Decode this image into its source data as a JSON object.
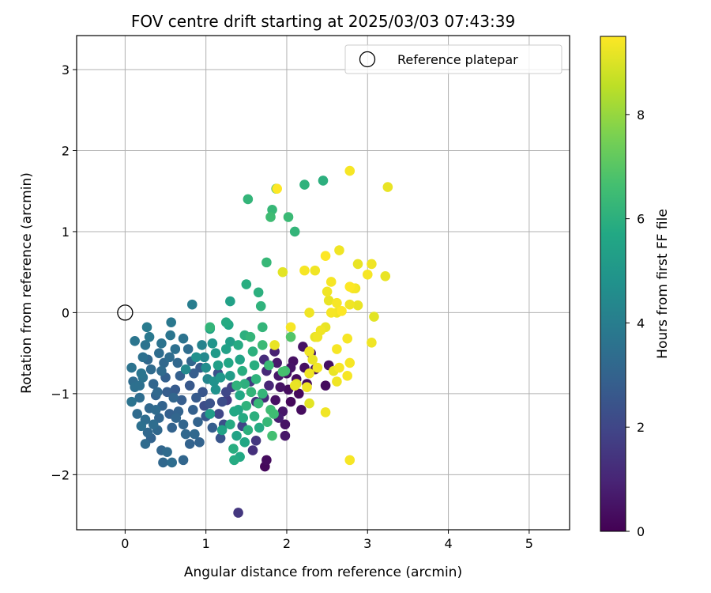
{
  "chart_data": {
    "type": "scatter",
    "title": "FOV centre drift starting at 2025/03/03 07:43:39",
    "xlabel": "Angular distance from reference (arcmin)",
    "ylabel": "Rotation from reference (arcmin)",
    "xlim": [
      -0.6,
      5.5
    ],
    "ylim": [
      -2.68,
      3.42
    ],
    "xticks": [
      0,
      1,
      2,
      3,
      4,
      5
    ],
    "yticks": [
      -2,
      -1,
      0,
      1,
      2,
      3
    ],
    "grid": true,
    "legend": {
      "placement": "top-right",
      "entries": [
        "Reference platepar"
      ]
    },
    "reference_point": {
      "x": 0,
      "y": 0,
      "marker": "open-circle"
    },
    "colorbar": {
      "label": "Hours from first FF file",
      "range": [
        0,
        9.5
      ],
      "ticks": [
        0,
        2,
        4,
        6,
        8
      ],
      "colormap": "viridis"
    },
    "points": [
      {
        "x": 0.08,
        "y": -0.68,
        "t": 3.6
      },
      {
        "x": 0.1,
        "y": -0.85,
        "t": 3.4
      },
      {
        "x": 0.12,
        "y": -0.92,
        "t": 3.5
      },
      {
        "x": 0.08,
        "y": -1.1,
        "t": 3.6
      },
      {
        "x": 0.15,
        "y": -1.25,
        "t": 3.3
      },
      {
        "x": 0.18,
        "y": -1.05,
        "t": 3.4
      },
      {
        "x": 0.2,
        "y": -0.75,
        "t": 3.7
      },
      {
        "x": 0.22,
        "y": -0.55,
        "t": 3.5
      },
      {
        "x": 0.28,
        "y": -0.58,
        "t": 3.2
      },
      {
        "x": 0.25,
        "y": -0.4,
        "t": 3.6
      },
      {
        "x": 0.3,
        "y": -0.3,
        "t": 3.8
      },
      {
        "x": 0.27,
        "y": -0.18,
        "t": 3.9
      },
      {
        "x": 0.12,
        "y": -0.35,
        "t": 3.7
      },
      {
        "x": 0.32,
        "y": -0.7,
        "t": 3.3
      },
      {
        "x": 0.35,
        "y": -0.88,
        "t": 3.1
      },
      {
        "x": 0.38,
        "y": -1.02,
        "t": 3.0
      },
      {
        "x": 0.3,
        "y": -1.18,
        "t": 3.2
      },
      {
        "x": 0.25,
        "y": -1.32,
        "t": 3.4
      },
      {
        "x": 0.2,
        "y": -1.4,
        "t": 3.5
      },
      {
        "x": 0.28,
        "y": -1.48,
        "t": 3.2
      },
      {
        "x": 0.32,
        "y": -1.55,
        "t": 3.0
      },
      {
        "x": 0.25,
        "y": -1.62,
        "t": 3.3
      },
      {
        "x": 0.42,
        "y": -0.5,
        "t": 3.4
      },
      {
        "x": 0.45,
        "y": -0.38,
        "t": 3.6
      },
      {
        "x": 0.48,
        "y": -0.62,
        "t": 3.2
      },
      {
        "x": 0.5,
        "y": -0.8,
        "t": 2.9
      },
      {
        "x": 0.52,
        "y": -0.98,
        "t": 2.8
      },
      {
        "x": 0.46,
        "y": -1.15,
        "t": 3.0
      },
      {
        "x": 0.42,
        "y": -1.3,
        "t": 3.1
      },
      {
        "x": 0.4,
        "y": -1.45,
        "t": 3.2
      },
      {
        "x": 0.55,
        "y": -1.25,
        "t": 2.9
      },
      {
        "x": 0.58,
        "y": -1.42,
        "t": 3.0
      },
      {
        "x": 0.45,
        "y": -1.7,
        "t": 3.1
      },
      {
        "x": 0.52,
        "y": -1.72,
        "t": 3.3
      },
      {
        "x": 0.47,
        "y": -1.85,
        "t": 3.2
      },
      {
        "x": 0.58,
        "y": -1.85,
        "t": 3.4
      },
      {
        "x": 0.72,
        "y": -1.82,
        "t": 3.1
      },
      {
        "x": 0.56,
        "y": -0.28,
        "t": 3.7
      },
      {
        "x": 0.57,
        "y": -0.12,
        "t": 3.8
      },
      {
        "x": 0.62,
        "y": -0.45,
        "t": 3.5
      },
      {
        "x": 0.65,
        "y": -0.62,
        "t": 3.2
      },
      {
        "x": 0.68,
        "y": -0.78,
        "t": 2.9
      },
      {
        "x": 0.62,
        "y": -0.95,
        "t": 2.7
      },
      {
        "x": 0.7,
        "y": -1.08,
        "t": 2.8
      },
      {
        "x": 0.66,
        "y": -1.22,
        "t": 3.0
      },
      {
        "x": 0.72,
        "y": -1.38,
        "t": 3.1
      },
      {
        "x": 0.75,
        "y": -1.5,
        "t": 3.2
      },
      {
        "x": 0.8,
        "y": -1.62,
        "t": 3.0
      },
      {
        "x": 0.72,
        "y": -0.32,
        "t": 3.6
      },
      {
        "x": 0.78,
        "y": -0.45,
        "t": 3.4
      },
      {
        "x": 0.82,
        "y": -0.6,
        "t": 3.1
      },
      {
        "x": 0.85,
        "y": -0.75,
        "t": 2.8
      },
      {
        "x": 0.8,
        "y": -0.9,
        "t": 2.6
      },
      {
        "x": 0.88,
        "y": -1.05,
        "t": 2.7
      },
      {
        "x": 0.84,
        "y": -1.2,
        "t": 2.9
      },
      {
        "x": 0.9,
        "y": -1.35,
        "t": 3.0
      },
      {
        "x": 0.86,
        "y": -1.5,
        "t": 3.2
      },
      {
        "x": 0.92,
        "y": -1.6,
        "t": 3.0
      },
      {
        "x": 0.83,
        "y": 0.1,
        "t": 4.0
      },
      {
        "x": 0.95,
        "y": -0.4,
        "t": 4.2
      },
      {
        "x": 0.98,
        "y": -0.55,
        "t": 4.4
      },
      {
        "x": 1.0,
        "y": -0.68,
        "t": 4.6
      },
      {
        "x": 1.02,
        "y": -0.82,
        "t": 4.3
      },
      {
        "x": 0.96,
        "y": -0.98,
        "t": 2.5
      },
      {
        "x": 1.05,
        "y": -1.12,
        "t": 2.4
      },
      {
        "x": 1.0,
        "y": -1.28,
        "t": 2.6
      },
      {
        "x": 1.08,
        "y": -1.42,
        "t": 2.8
      },
      {
        "x": 1.05,
        "y": -0.2,
        "t": 5.5
      },
      {
        "x": 1.08,
        "y": -0.38,
        "t": 4.9
      },
      {
        "x": 1.12,
        "y": -0.5,
        "t": 5.1
      },
      {
        "x": 1.15,
        "y": -0.65,
        "t": 5.3
      },
      {
        "x": 1.18,
        "y": -0.8,
        "t": 5.0
      },
      {
        "x": 1.12,
        "y": -0.95,
        "t": 4.8
      },
      {
        "x": 1.2,
        "y": -1.1,
        "t": 2.2
      },
      {
        "x": 1.16,
        "y": -1.25,
        "t": 2.0
      },
      {
        "x": 1.22,
        "y": -1.38,
        "t": 2.3
      },
      {
        "x": 1.18,
        "y": -1.55,
        "t": 2.5
      },
      {
        "x": 1.25,
        "y": -0.45,
        "t": 5.4
      },
      {
        "x": 1.28,
        "y": -0.62,
        "t": 5.6
      },
      {
        "x": 1.3,
        "y": -0.78,
        "t": 5.2
      },
      {
        "x": 1.32,
        "y": -0.92,
        "t": 1.8
      },
      {
        "x": 1.26,
        "y": -1.08,
        "t": 1.7
      },
      {
        "x": 1.35,
        "y": -1.22,
        "t": 5.7
      },
      {
        "x": 1.3,
        "y": -1.38,
        "t": 5.8
      },
      {
        "x": 1.38,
        "y": -1.52,
        "t": 5.5
      },
      {
        "x": 1.34,
        "y": -1.68,
        "t": 5.9
      },
      {
        "x": 1.28,
        "y": -0.15,
        "t": 5.6
      },
      {
        "x": 1.3,
        "y": -0.36,
        "t": 5.3
      },
      {
        "x": 1.4,
        "y": -0.4,
        "t": 5.8
      },
      {
        "x": 1.42,
        "y": -0.58,
        "t": 5.5
      },
      {
        "x": 1.45,
        "y": -0.72,
        "t": 5.9
      },
      {
        "x": 1.48,
        "y": -0.88,
        "t": 6.0
      },
      {
        "x": 1.42,
        "y": -1.02,
        "t": 5.7
      },
      {
        "x": 1.5,
        "y": -1.15,
        "t": 6.1
      },
      {
        "x": 1.46,
        "y": -1.3,
        "t": 5.8
      },
      {
        "x": 1.52,
        "y": -1.45,
        "t": 6.0
      },
      {
        "x": 1.48,
        "y": -1.6,
        "t": 5.6
      },
      {
        "x": 1.55,
        "y": -0.3,
        "t": 6.2
      },
      {
        "x": 1.58,
        "y": -0.48,
        "t": 6.0
      },
      {
        "x": 1.6,
        "y": -0.65,
        "t": 5.9
      },
      {
        "x": 1.62,
        "y": -0.82,
        "t": 6.1
      },
      {
        "x": 1.56,
        "y": -0.98,
        "t": 6.2
      },
      {
        "x": 1.65,
        "y": -1.12,
        "t": 6.3
      },
      {
        "x": 1.6,
        "y": -1.28,
        "t": 6.0
      },
      {
        "x": 1.66,
        "y": -1.42,
        "t": 5.8
      },
      {
        "x": 1.62,
        "y": -1.58,
        "t": 1.5
      },
      {
        "x": 1.58,
        "y": -1.7,
        "t": 1.3
      },
      {
        "x": 1.7,
        "y": -0.4,
        "t": 6.4
      },
      {
        "x": 1.72,
        "y": -0.58,
        "t": 1.2
      },
      {
        "x": 1.75,
        "y": -0.72,
        "t": 1.1
      },
      {
        "x": 1.78,
        "y": -0.9,
        "t": 1.0
      },
      {
        "x": 1.72,
        "y": -1.05,
        "t": 1.2
      },
      {
        "x": 1.8,
        "y": -1.2,
        "t": 6.5
      },
      {
        "x": 1.76,
        "y": -1.35,
        "t": 6.3
      },
      {
        "x": 1.82,
        "y": -1.52,
        "t": 6.6
      },
      {
        "x": 1.85,
        "y": -0.48,
        "t": 0.9
      },
      {
        "x": 1.88,
        "y": -0.62,
        "t": 0.7
      },
      {
        "x": 1.9,
        "y": -0.78,
        "t": 0.6
      },
      {
        "x": 1.92,
        "y": -0.92,
        "t": 0.5
      },
      {
        "x": 1.86,
        "y": -1.08,
        "t": 0.4
      },
      {
        "x": 1.95,
        "y": -1.22,
        "t": 0.6
      },
      {
        "x": 1.98,
        "y": -1.38,
        "t": 0.5
      },
      {
        "x": 2.0,
        "y": -0.75,
        "t": 0.4
      },
      {
        "x": 2.02,
        "y": -0.95,
        "t": 0.3
      },
      {
        "x": 2.05,
        "y": -1.1,
        "t": 0.2
      },
      {
        "x": 2.08,
        "y": -0.6,
        "t": 0.4
      },
      {
        "x": 2.12,
        "y": -0.82,
        "t": 0.3
      },
      {
        "x": 2.15,
        "y": -1.0,
        "t": 0.2
      },
      {
        "x": 2.18,
        "y": -1.2,
        "t": 0.3
      },
      {
        "x": 2.2,
        "y": -0.42,
        "t": 0.5
      },
      {
        "x": 2.22,
        "y": -0.68,
        "t": 0.4
      },
      {
        "x": 2.25,
        "y": -0.88,
        "t": 0.3
      },
      {
        "x": 2.3,
        "y": -0.5,
        "t": 0.6
      },
      {
        "x": 2.35,
        "y": -0.7,
        "t": 0.5
      },
      {
        "x": 2.48,
        "y": -0.9,
        "t": 0.3
      },
      {
        "x": 2.52,
        "y": -0.65,
        "t": 0.4
      },
      {
        "x": 1.98,
        "y": -1.52,
        "t": 0.6
      },
      {
        "x": 1.75,
        "y": -1.82,
        "t": 0.3
      },
      {
        "x": 1.73,
        "y": -1.9,
        "t": 0.2
      },
      {
        "x": 1.4,
        "y": -2.47,
        "t": 1.5
      },
      {
        "x": 1.35,
        "y": -1.82,
        "t": 5.8
      },
      {
        "x": 1.42,
        "y": -1.78,
        "t": 5.7
      },
      {
        "x": 1.52,
        "y": 1.4,
        "t": 6.2
      },
      {
        "x": 1.87,
        "y": 1.53,
        "t": 7.0
      },
      {
        "x": 1.88,
        "y": 1.53,
        "t": 9.5
      },
      {
        "x": 2.22,
        "y": 1.58,
        "t": 6.1
      },
      {
        "x": 2.45,
        "y": 1.63,
        "t": 6.0
      },
      {
        "x": 1.82,
        "y": 1.27,
        "t": 6.3
      },
      {
        "x": 1.8,
        "y": 1.18,
        "t": 6.5
      },
      {
        "x": 2.02,
        "y": 1.18,
        "t": 6.4
      },
      {
        "x": 2.1,
        "y": 1.0,
        "t": 6.2
      },
      {
        "x": 1.75,
        "y": 0.62,
        "t": 6.3
      },
      {
        "x": 1.3,
        "y": 0.14,
        "t": 5.4
      },
      {
        "x": 1.5,
        "y": 0.35,
        "t": 5.9
      },
      {
        "x": 1.65,
        "y": 0.25,
        "t": 6.0
      },
      {
        "x": 1.68,
        "y": 0.08,
        "t": 6.1
      },
      {
        "x": 1.05,
        "y": -0.18,
        "t": 6.2
      },
      {
        "x": 1.25,
        "y": -0.12,
        "t": 5.8
      },
      {
        "x": 1.48,
        "y": -0.28,
        "t": 6.0
      },
      {
        "x": 1.7,
        "y": -0.18,
        "t": 6.2
      },
      {
        "x": 1.98,
        "y": -0.72,
        "t": 6.6
      },
      {
        "x": 2.78,
        "y": 1.75,
        "t": 9.4
      },
      {
        "x": 3.25,
        "y": 1.55,
        "t": 9.2
      },
      {
        "x": 2.65,
        "y": 0.77,
        "t": 9.3
      },
      {
        "x": 2.48,
        "y": 0.7,
        "t": 9.5
      },
      {
        "x": 2.88,
        "y": 0.6,
        "t": 9.2
      },
      {
        "x": 3.05,
        "y": 0.6,
        "t": 9.3
      },
      {
        "x": 3.0,
        "y": 0.47,
        "t": 9.4
      },
      {
        "x": 3.22,
        "y": 0.45,
        "t": 9.2
      },
      {
        "x": 2.22,
        "y": 0.52,
        "t": 9.4
      },
      {
        "x": 2.35,
        "y": 0.52,
        "t": 9.3
      },
      {
        "x": 1.95,
        "y": 0.5,
        "t": 9.1
      },
      {
        "x": 2.55,
        "y": 0.38,
        "t": 9.4
      },
      {
        "x": 2.5,
        "y": 0.26,
        "t": 9.3
      },
      {
        "x": 2.82,
        "y": 0.3,
        "t": 9.4
      },
      {
        "x": 2.78,
        "y": 0.32,
        "t": 9.5
      },
      {
        "x": 2.85,
        "y": 0.3,
        "t": 9.3
      },
      {
        "x": 2.52,
        "y": 0.15,
        "t": 9.2
      },
      {
        "x": 2.62,
        "y": 0.12,
        "t": 9.4
      },
      {
        "x": 2.78,
        "y": 0.1,
        "t": 9.3
      },
      {
        "x": 2.88,
        "y": 0.09,
        "t": 9.2
      },
      {
        "x": 2.55,
        "y": 0.0,
        "t": 9.4
      },
      {
        "x": 2.62,
        "y": 0.0,
        "t": 9.3
      },
      {
        "x": 2.68,
        "y": 0.02,
        "t": 9.5
      },
      {
        "x": 2.28,
        "y": 0.0,
        "t": 9.3
      },
      {
        "x": 3.08,
        "y": -0.05,
        "t": 9.1
      },
      {
        "x": 2.48,
        "y": -0.18,
        "t": 9.2
      },
      {
        "x": 2.42,
        "y": -0.22,
        "t": 9.3
      },
      {
        "x": 2.05,
        "y": -0.18,
        "t": 9.4
      },
      {
        "x": 2.35,
        "y": -0.3,
        "t": 9.2
      },
      {
        "x": 2.38,
        "y": -0.3,
        "t": 9.3
      },
      {
        "x": 2.75,
        "y": -0.32,
        "t": 9.4
      },
      {
        "x": 3.05,
        "y": -0.37,
        "t": 9.3
      },
      {
        "x": 1.85,
        "y": -0.4,
        "t": 9.2
      },
      {
        "x": 2.62,
        "y": -0.45,
        "t": 9.4
      },
      {
        "x": 2.28,
        "y": -0.48,
        "t": 9.3
      },
      {
        "x": 2.32,
        "y": -0.58,
        "t": 9.2
      },
      {
        "x": 2.78,
        "y": -0.62,
        "t": 9.4
      },
      {
        "x": 2.38,
        "y": -0.68,
        "t": 9.3
      },
      {
        "x": 2.65,
        "y": -0.68,
        "t": 9.4
      },
      {
        "x": 2.58,
        "y": -0.72,
        "t": 9.2
      },
      {
        "x": 2.28,
        "y": -0.75,
        "t": 9.3
      },
      {
        "x": 2.75,
        "y": -0.78,
        "t": 9.4
      },
      {
        "x": 2.62,
        "y": -0.85,
        "t": 9.3
      },
      {
        "x": 2.12,
        "y": -0.88,
        "t": 9.1
      },
      {
        "x": 2.1,
        "y": -0.9,
        "t": 9.2
      },
      {
        "x": 2.25,
        "y": -0.92,
        "t": 9.3
      },
      {
        "x": 2.28,
        "y": -1.12,
        "t": 9.1
      },
      {
        "x": 2.48,
        "y": -1.23,
        "t": 9.3
      },
      {
        "x": 2.78,
        "y": -1.82,
        "t": 9.4
      },
      {
        "x": 2.05,
        "y": -0.3,
        "t": 6.9
      },
      {
        "x": 1.95,
        "y": -0.73,
        "t": 6.7
      },
      {
        "x": 1.84,
        "y": -1.25,
        "t": 6.5
      },
      {
        "x": 1.7,
        "y": -1.0,
        "t": 6.2
      },
      {
        "x": 1.38,
        "y": -0.9,
        "t": 6.1
      },
      {
        "x": 1.4,
        "y": -1.2,
        "t": 5.6
      },
      {
        "x": 1.2,
        "y": -1.45,
        "t": 5.5
      },
      {
        "x": 1.05,
        "y": -1.25,
        "t": 5.2
      },
      {
        "x": 1.1,
        "y": -0.85,
        "t": 4.8
      },
      {
        "x": 0.88,
        "y": -0.55,
        "t": 4.7
      },
      {
        "x": 0.75,
        "y": -0.7,
        "t": 4.5
      },
      {
        "x": 0.6,
        "y": -1.05,
        "t": 3.1
      },
      {
        "x": 0.38,
        "y": -1.2,
        "t": 3.3
      },
      {
        "x": 0.18,
        "y": -0.9,
        "t": 3.5
      },
      {
        "x": 0.22,
        "y": -0.8,
        "t": 3.6
      },
      {
        "x": 0.4,
        "y": -0.98,
        "t": 3.2
      },
      {
        "x": 0.55,
        "y": -0.55,
        "t": 3.4
      },
      {
        "x": 0.63,
        "y": -1.3,
        "t": 3.1
      },
      {
        "x": 0.93,
        "y": -0.68,
        "t": 2.7
      },
      {
        "x": 1.15,
        "y": -0.75,
        "t": 2.4
      },
      {
        "x": 0.98,
        "y": -1.15,
        "t": 2.2
      },
      {
        "x": 1.25,
        "y": -0.98,
        "t": 2.0
      },
      {
        "x": 1.55,
        "y": -0.85,
        "t": 1.6
      },
      {
        "x": 1.62,
        "y": -1.1,
        "t": 1.4
      },
      {
        "x": 1.45,
        "y": -1.4,
        "t": 1.9
      },
      {
        "x": 1.78,
        "y": -0.65,
        "t": 6.4
      },
      {
        "x": 1.9,
        "y": -1.3,
        "t": 0.8
      },
      {
        "x": 2.05,
        "y": -0.68,
        "t": 0.5
      },
      {
        "x": 0.35,
        "y": -1.38,
        "t": 3.4
      },
      {
        "x": 0.45,
        "y": -0.72,
        "t": 3.3
      }
    ]
  }
}
